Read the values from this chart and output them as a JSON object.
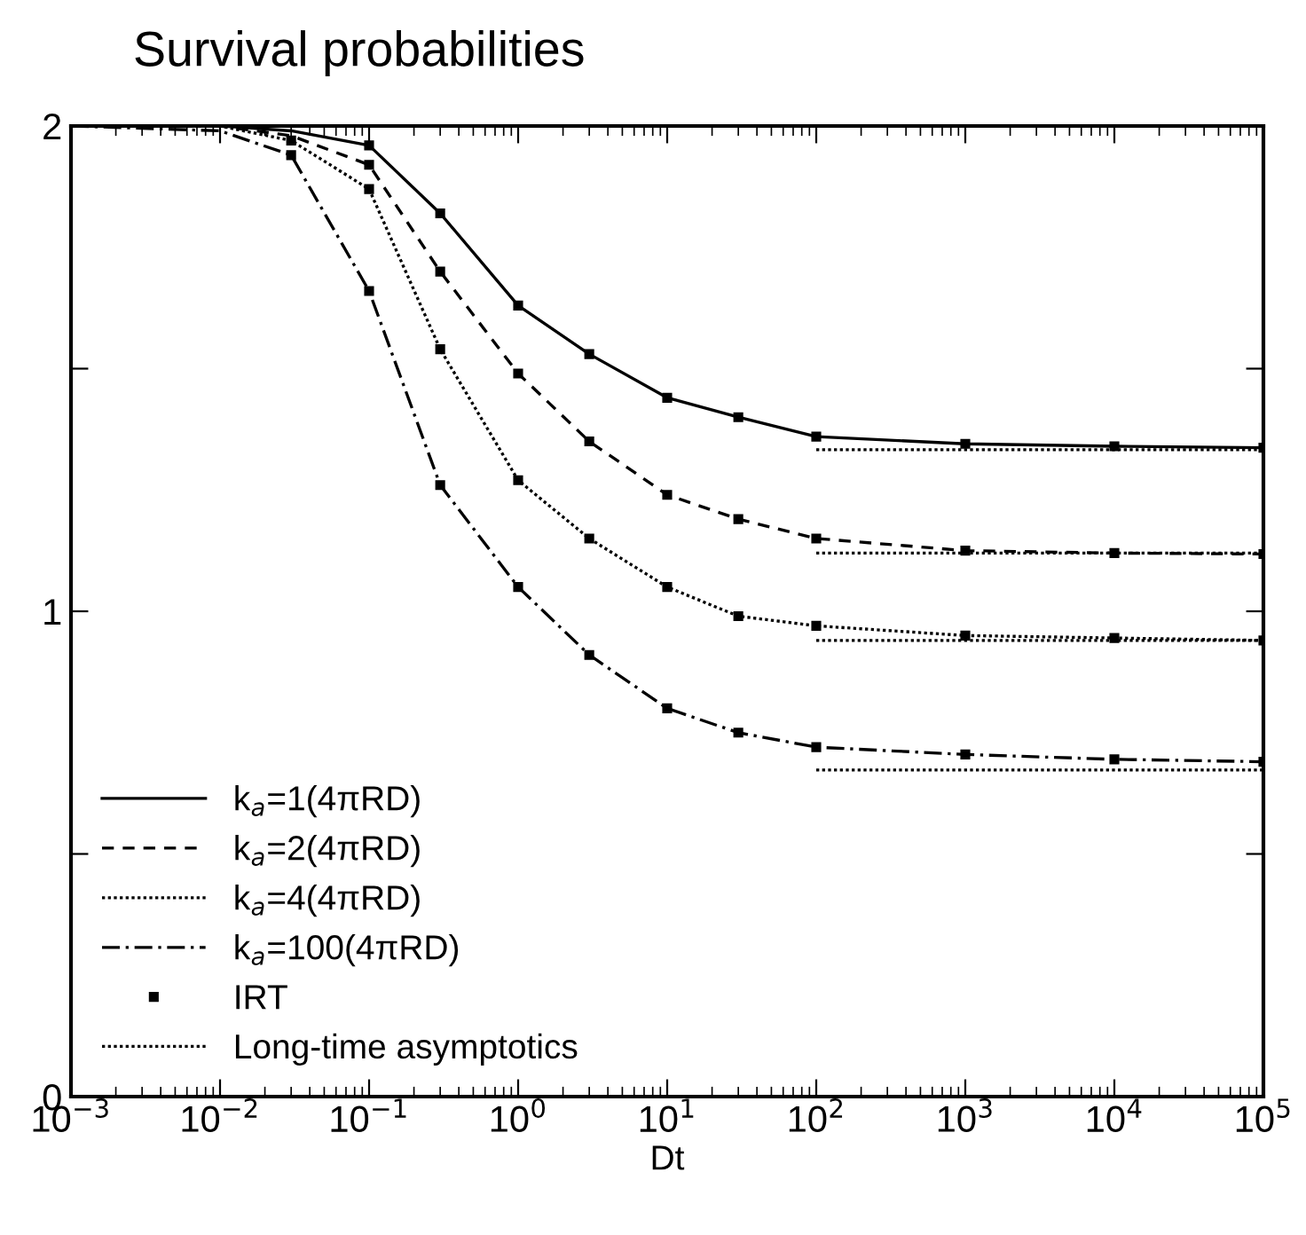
{
  "chart_data": {
    "type": "line",
    "title": "Survival probabilities",
    "xlabel": "Dt",
    "log": "x",
    "xlim": [
      0.001,
      100000
    ],
    "ylim": [
      0,
      2
    ],
    "xticks": [
      {
        "value": 0.001,
        "label": "10$^{−3}$"
      },
      {
        "value": 0.01,
        "label": "10$^{−2}$"
      },
      {
        "value": 0.1,
        "label": "10$^{−1}$"
      },
      {
        "value": 1,
        "label": "10$^{0}$"
      },
      {
        "value": 10,
        "label": "10$^{1}$"
      },
      {
        "value": 100,
        "label": "10$^{2}$"
      },
      {
        "value": 1000,
        "label": "10$^{3}$"
      },
      {
        "value": 10000,
        "label": "10$^{4}$"
      },
      {
        "value": 100000,
        "label": "10$^{5}$"
      }
    ],
    "yticks": [
      0,
      {
        "value": 0.5,
        "label": null
      },
      1,
      {
        "value": 1.5,
        "label": null
      },
      2
    ],
    "grid": false,
    "legend": "bottom left",
    "marker": "none",
    "series": [
      {
        "name": "k$_{a}$=1(4πRD)",
        "color": "#000000",
        "line_style": "solid",
        "x": [
          0.001,
          0.01,
          0.03,
          0.1,
          0.3,
          1,
          3,
          10,
          30,
          100,
          1000,
          10000,
          100000
        ],
        "values": [
          2.0,
          2.0,
          1.99,
          1.96,
          1.82,
          1.63,
          1.53,
          1.44,
          1.4,
          1.36,
          1.345,
          1.34,
          1.337
        ]
      },
      {
        "name": "k$_{a}$=2(4πRD)",
        "color": "#000000",
        "line_style": "dashed",
        "x": [
          0.001,
          0.01,
          0.03,
          0.1,
          0.3,
          1,
          3,
          10,
          30,
          100,
          1000,
          10000,
          100000
        ],
        "values": [
          2.0,
          2.0,
          1.98,
          1.92,
          1.7,
          1.49,
          1.35,
          1.24,
          1.19,
          1.15,
          1.125,
          1.12,
          1.118
        ]
      },
      {
        "name": "k$_{a}$=4(4πRD)",
        "color": "#000000",
        "line_style": "dotted",
        "x": [
          0.001,
          0.01,
          0.03,
          0.1,
          0.3,
          1,
          3,
          10,
          30,
          100,
          1000,
          10000,
          100000
        ],
        "values": [
          2.0,
          2.0,
          1.97,
          1.87,
          1.54,
          1.27,
          1.15,
          1.05,
          0.99,
          0.97,
          0.95,
          0.945,
          0.94
        ]
      },
      {
        "name": "k$_{a}$=100(4πRD)",
        "color": "#000000",
        "line_style": "dashdot",
        "x": [
          0.001,
          0.01,
          0.03,
          0.1,
          0.3,
          1,
          3,
          10,
          30,
          100,
          1000,
          10000,
          100000
        ],
        "values": [
          2.0,
          1.99,
          1.94,
          1.66,
          1.26,
          1.05,
          0.91,
          0.8,
          0.75,
          0.72,
          0.705,
          0.695,
          0.69
        ]
      },
      {
        "name": "IRT",
        "type": "scatter",
        "marker": "square",
        "color": "#000000",
        "x": [
          0.1,
          0.3,
          1,
          3,
          10,
          30,
          100,
          1000,
          10000,
          100000,
          0.1,
          0.3,
          1,
          3,
          10,
          30,
          100,
          1000,
          10000,
          100000,
          0.03,
          0.1,
          0.3,
          1,
          3,
          10,
          30,
          100,
          1000,
          10000,
          100000,
          0.03,
          0.1,
          0.3,
          1,
          3,
          10,
          30,
          100,
          1000,
          10000,
          100000
        ],
        "values": [
          1.96,
          1.82,
          1.63,
          1.53,
          1.44,
          1.4,
          1.36,
          1.345,
          1.34,
          1.337,
          1.92,
          1.7,
          1.49,
          1.35,
          1.24,
          1.19,
          1.15,
          1.125,
          1.12,
          1.118,
          1.97,
          1.87,
          1.54,
          1.27,
          1.15,
          1.05,
          0.99,
          0.97,
          0.95,
          0.945,
          0.94,
          1.94,
          1.66,
          1.26,
          1.05,
          0.91,
          0.8,
          0.75,
          0.72,
          0.705,
          0.695,
          0.69
        ]
      },
      {
        "name": "Long-time asymptotics",
        "color": "#000000",
        "line_style": "dotted",
        "x": [
          100,
          100000
        ],
        "values": [
          1.333,
          1.333
        ]
      },
      {
        "color": "#000000",
        "line_style": "dotted",
        "x": [
          100,
          100000
        ],
        "values": [
          1.12,
          1.12
        ]
      },
      {
        "color": "#000000",
        "line_style": "dotted",
        "x": [
          100,
          100000
        ],
        "values": [
          0.94,
          0.94
        ]
      },
      {
        "color": "#000000",
        "line_style": "dotted",
        "x": [
          100,
          100000
        ],
        "values": [
          0.673,
          0.673
        ]
      }
    ]
  }
}
